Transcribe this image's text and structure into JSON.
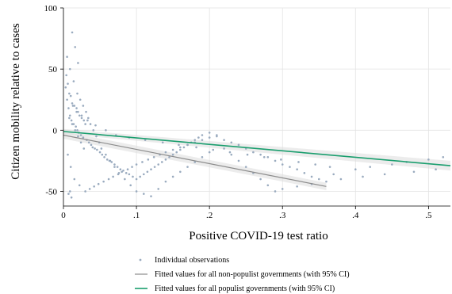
{
  "chart_data": {
    "type": "scatter",
    "title": "",
    "xlabel": "Positive COVID-19 test ratio",
    "ylabel": "Citizen mobility relative to cases",
    "xlim": [
      0,
      0.53
    ],
    "ylim": [
      -62,
      100
    ],
    "x_ticks": [
      0,
      0.1,
      0.2,
      0.3,
      0.4,
      0.5
    ],
    "x_tick_labels": [
      "0",
      ".1",
      ".2",
      ".3",
      ".4",
      ".5"
    ],
    "y_ticks": [
      -50,
      0,
      50,
      100
    ],
    "y_tick_labels": [
      "-50",
      "0",
      "50",
      "100"
    ],
    "grid": true,
    "legend_position": "bottom",
    "series": [
      {
        "name": "Individual observations",
        "kind": "scatter",
        "color": "#9aabbf",
        "x": [
          0.004,
          0.006,
          0.008,
          0.01,
          0.012,
          0.015,
          0.018,
          0.02,
          0.022,
          0.025,
          0.028,
          0.03,
          0.003,
          0.005,
          0.007,
          0.009,
          0.011,
          0.014,
          0.017,
          0.019,
          0.021,
          0.024,
          0.027,
          0.032,
          0.035,
          0.038,
          0.04,
          0.043,
          0.046,
          0.05,
          0.053,
          0.056,
          0.06,
          0.063,
          0.066,
          0.07,
          0.074,
          0.078,
          0.082,
          0.086,
          0.09,
          0.095,
          0.1,
          0.105,
          0.11,
          0.115,
          0.12,
          0.125,
          0.13,
          0.135,
          0.14,
          0.145,
          0.15,
          0.155,
          0.16,
          0.165,
          0.17,
          0.175,
          0.18,
          0.185,
          0.19,
          0.2,
          0.21,
          0.22,
          0.23,
          0.24,
          0.25,
          0.26,
          0.27,
          0.28,
          0.29,
          0.3,
          0.31,
          0.32,
          0.33,
          0.34,
          0.35,
          0.37,
          0.4,
          0.42,
          0.45,
          0.47,
          0.5,
          0.52,
          0.008,
          0.012,
          0.016,
          0.02,
          0.024,
          0.028,
          0.013,
          0.018,
          0.006,
          0.01,
          0.015,
          0.022,
          0.03,
          0.036,
          0.042,
          0.048,
          0.055,
          0.062,
          0.068,
          0.075,
          0.08,
          0.088,
          0.094,
          0.1,
          0.108,
          0.116,
          0.124,
          0.132,
          0.14,
          0.15,
          0.16,
          0.17,
          0.18,
          0.19,
          0.2,
          0.21,
          0.22,
          0.23,
          0.24,
          0.25,
          0.26,
          0.27,
          0.28,
          0.29,
          0.3,
          0.32,
          0.34,
          0.36,
          0.38,
          0.41,
          0.44,
          0.48,
          0.51,
          0.005,
          0.009,
          0.014,
          0.019,
          0.023,
          0.027,
          0.031,
          0.034,
          0.037,
          0.041,
          0.045,
          0.049,
          0.052,
          0.058,
          0.064,
          0.07,
          0.076,
          0.084,
          0.092,
          0.1,
          0.11,
          0.12,
          0.13,
          0.14,
          0.15,
          0.16,
          0.17,
          0.18,
          0.19,
          0.2,
          0.012,
          0.016,
          0.02,
          0.011,
          0.007,
          0.009,
          0.025,
          0.033,
          0.044,
          0.058,
          0.072,
          0.09,
          0.112,
          0.136,
          0.158,
          0.182,
          0.205,
          0.228,
          0.252,
          0.275,
          0.298,
          0.322,
          0.345,
          0.365
        ],
        "y": [
          45,
          38,
          30,
          28,
          22,
          20,
          18,
          15,
          12,
          10,
          8,
          5,
          35,
          25,
          18,
          12,
          8,
          5,
          3,
          0,
          -2,
          -4,
          -6,
          -8,
          -10,
          -12,
          -14,
          -15,
          -16,
          -18,
          -20,
          -22,
          -24,
          -25,
          -26,
          -28,
          -30,
          -32,
          -33,
          -35,
          -36,
          -38,
          -40,
          -38,
          -36,
          -34,
          -32,
          -30,
          -28,
          -26,
          -24,
          -22,
          -20,
          -18,
          -16,
          -14,
          -12,
          -10,
          -8,
          -6,
          -4,
          -2,
          -5,
          -8,
          -10,
          -12,
          -15,
          -18,
          -20,
          -22,
          -25,
          -28,
          -30,
          -32,
          -35,
          -38,
          -40,
          -36,
          -32,
          -30,
          -28,
          -26,
          -24,
          -22,
          10,
          5,
          0,
          -5,
          -10,
          -15,
          20,
          15,
          -20,
          -30,
          -40,
          -45,
          -50,
          -48,
          -46,
          -44,
          -42,
          -40,
          -38,
          -36,
          -34,
          -32,
          -30,
          -28,
          -26,
          -24,
          -22,
          -20,
          -18,
          -16,
          -14,
          -12,
          -10,
          -8,
          -6,
          -4,
          -15,
          -20,
          -25,
          -30,
          -35,
          -40,
          -45,
          -50,
          -48,
          -46,
          -44,
          -42,
          -40,
          -38,
          -36,
          -34,
          -32,
          60,
          50,
          40,
          30,
          25,
          20,
          15,
          10,
          5,
          0,
          -5,
          -10,
          -15,
          -20,
          -25,
          -30,
          -35,
          -40,
          -45,
          -50,
          -52,
          -54,
          -48,
          -42,
          -38,
          -34,
          -30,
          -26,
          -22,
          -18,
          80,
          68,
          55,
          -55,
          -52,
          -50,
          12,
          8,
          4,
          0,
          -4,
          -6,
          -8,
          -10,
          -12,
          -14,
          -16,
          -18,
          -20,
          -22,
          -24,
          -26,
          -28,
          -30
        ]
      },
      {
        "name": "Fitted values for all non-populist governments (with 95% CI)",
        "kind": "line",
        "color": "#8c8c8c",
        "x": [
          0,
          0.36
        ],
        "y": [
          -4,
          -46
        ],
        "ci_lower": [
          -7,
          -49
        ],
        "ci_upper": [
          -1,
          -43
        ]
      },
      {
        "name": "Fitted values for all populist governments (with 95% CI)",
        "kind": "line",
        "color": "#1a9e6e",
        "x": [
          0,
          0.53
        ],
        "y": [
          -1,
          -29
        ],
        "ci_lower": [
          -3,
          -33
        ],
        "ci_upper": [
          1,
          -25
        ]
      }
    ]
  }
}
